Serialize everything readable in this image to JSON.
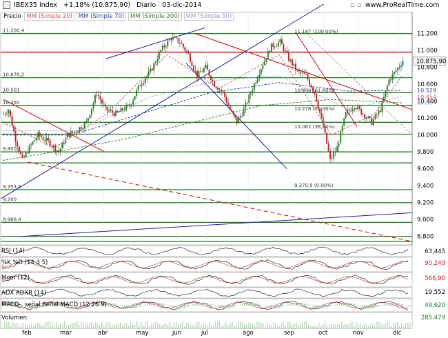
{
  "header": {
    "symbol": "IBEX35 Index",
    "change": "+1,18% (10.875,90)",
    "period": "Diario",
    "date": "03-dic-2014",
    "site": "www.ProRealTime.com"
  },
  "legend": {
    "price": "Precio",
    "ma20": "MM (Simple 20)",
    "ma70": "MM (Simple 70)",
    "ma200": "MM (Simple 200)",
    "ma50": "MM (Simple 50)"
  },
  "colors": {
    "up": "#228b22",
    "down": "#cc2222",
    "ma20": "#d45555",
    "ma70": "#2c3e9f",
    "ma200": "#3e7a2a",
    "ma50": "#8e9bd0",
    "hline": "#1f7a1f",
    "resistance": "#cc0000",
    "trend_blue": "#1a1aa0"
  },
  "chart_data": {
    "type": "candlestick",
    "title": "IBEX35 Index",
    "y_axis": {
      "ticks": [
        "11.200",
        "11.000",
        "10.800",
        "10.600",
        "10.400",
        "10.200",
        "10.000",
        "9.800",
        "9.600",
        "9.400",
        "9.200",
        "9.000",
        "8.800"
      ],
      "ylim": [
        8700,
        11450
      ]
    },
    "x_axis": {
      "months": [
        "feb",
        "mar",
        "abr",
        "may",
        "jun",
        "jul",
        "ago",
        "sep",
        "oct",
        "nov",
        "dic"
      ]
    },
    "last_price": "10.875,90",
    "price_labels_right": [
      "10.529",
      "10.454",
      "10.384"
    ],
    "level_labels_left": [
      "11.200,4",
      "10.678,2",
      "10.501",
      "10.350",
      "9.800,1",
      "9.353,6",
      "9.200",
      "8.966,4"
    ],
    "fibonacci": [
      {
        "label": "11.187 (100,00%)",
        "value": 11187
      },
      {
        "label": "10.490 (61,80%)",
        "value": 10490
      },
      {
        "label": "10.276 (50,00%)",
        "value": 10276
      },
      {
        "label": "10.062 (38,20%)",
        "value": 10062
      },
      {
        "label": "9.370,5 (0,00%)",
        "value": 9370.5
      }
    ],
    "horizontal_levels": [
      11200,
      10980,
      10678,
      10501,
      10350,
      10150,
      10010,
      9800,
      9670,
      9353,
      9200,
      8966,
      8800,
      8740
    ],
    "red_horizontal": 10980,
    "series": [
      {
        "name": "MM (Simple 20)"
      },
      {
        "name": "MM (Simple 70)"
      },
      {
        "name": "MM (Simple 200)"
      },
      {
        "name": "MM (Simple 50)"
      }
    ]
  },
  "indicators": [
    {
      "label": "RSI (14)",
      "value": "63,445",
      "color": "#000000"
    },
    {
      "label": "%K  %D (14 3 5)",
      "value": "90,249",
      "color": "#cc2222"
    },
    {
      "label": "Mom (12)",
      "value": "566,90",
      "color": "#cc2222"
    },
    {
      "label": "ADX  ADXR (14)",
      "value": "19,552",
      "color": "#000000"
    },
    {
      "label": "MACD-, señal  Señal  MACD (12 26 9)",
      "value": "49,620",
      "color": "#1f7a1f"
    },
    {
      "label": "Volumen",
      "value": "285.479",
      "color": "#1f7a1f"
    }
  ],
  "watermark": "www.ProRealTime.com"
}
